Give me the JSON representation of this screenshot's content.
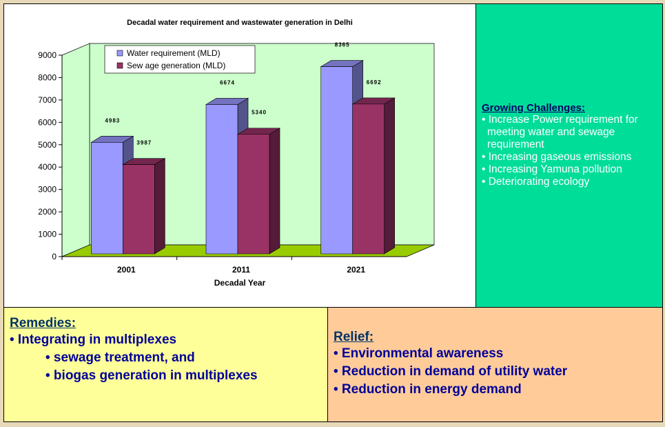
{
  "chart_data": {
    "type": "bar",
    "title": "Decadal water requirement and wastewater generation in Delhi",
    "xlabel": "Decadal Year",
    "categories": [
      "2001",
      "2011",
      "2021"
    ],
    "series": [
      {
        "name": "Water requirement (MLD)",
        "color": "#9999ff",
        "values": [
          4983,
          6674,
          8365
        ]
      },
      {
        "name": "Sew age generation (MLD)",
        "color": "#993366",
        "values": [
          3987,
          5340,
          6692
        ]
      }
    ],
    "ylim": [
      0,
      9000
    ],
    "yticks": [
      0,
      1000,
      2000,
      3000,
      4000,
      5000,
      6000,
      7000,
      8000,
      9000
    ],
    "legend": "top-left"
  },
  "challenges": {
    "title": "Growing Challenges:",
    "items": [
      "• Increase Power requirement for meeting water and sewage requirement",
      "• Increasing gaseous emissions",
      "• Increasing Yamuna pollution",
      "• Deteriorating ecology"
    ]
  },
  "remedies": {
    "title": "Remedies:",
    "items": [
      "• Integrating in multiplexes",
      "• sewage treatment, and",
      "• biogas generation  in multiplexes"
    ]
  },
  "relief": {
    "title": "Relief:",
    "items": [
      "• Environmental awareness",
      "• Reduction in demand of utility water",
      "• Reduction in energy demand"
    ]
  }
}
